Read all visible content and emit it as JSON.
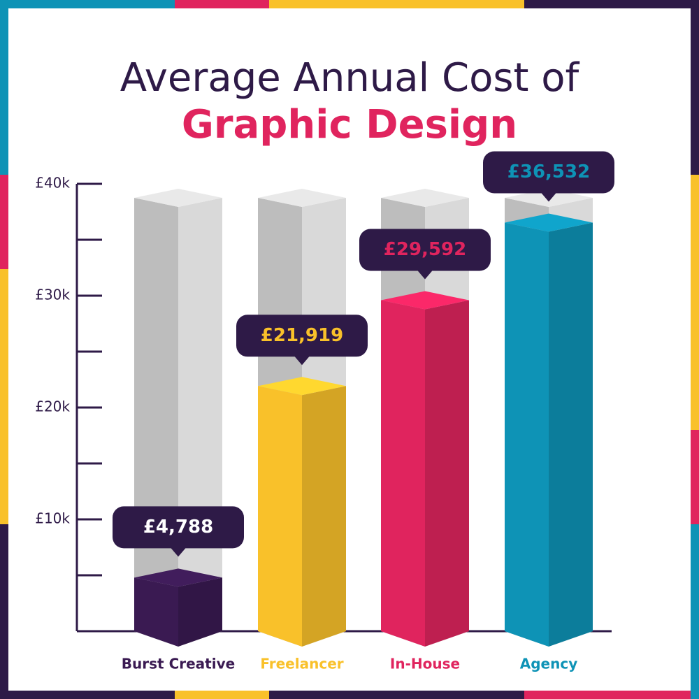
{
  "chart_data": {
    "type": "bar3d",
    "title": "Average Annual Cost of",
    "subtitle": "Graphic Design",
    "categories": [
      "Burst Creative",
      "Freelancer",
      "In-House",
      "Agency"
    ],
    "values": [
      4788,
      21919,
      29592,
      36532
    ],
    "value_labels": [
      "£4,788",
      "£21,919",
      "£29,592",
      "£36,532"
    ],
    "colors": [
      "#3a1a52",
      "#f9c12a",
      "#e0245e",
      "#0e93b6"
    ],
    "value_label_colors": [
      "#ffffff",
      "#f9c12a",
      "#e0245e",
      "#0e93b6"
    ],
    "ylim": [
      0,
      40000
    ],
    "yticks": [
      {
        "value": 10000,
        "label": "£10k"
      },
      {
        "value": 20000,
        "label": "£20k"
      },
      {
        "value": 30000,
        "label": "£30k"
      },
      {
        "value": 40000,
        "label": "£40k"
      }
    ],
    "minor_yticks": [
      5000,
      15000,
      25000,
      35000
    ]
  }
}
